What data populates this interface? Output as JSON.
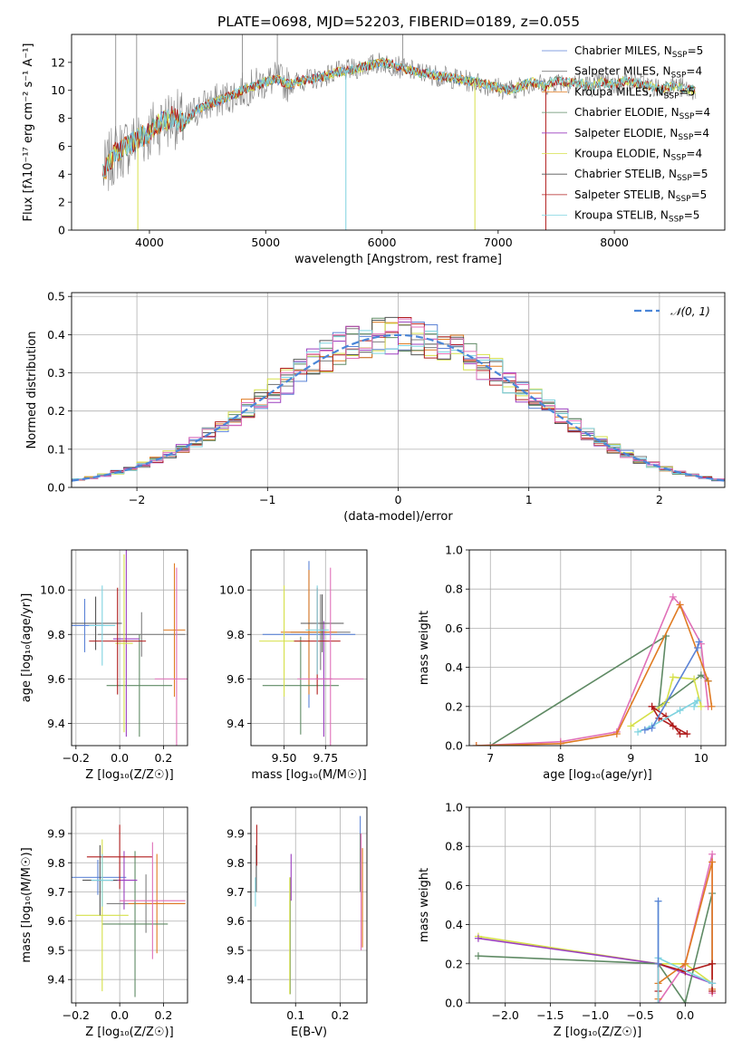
{
  "title": "PLATE=0698, MJD=52203, FIBERID=0189, z=0.055",
  "colors": {
    "Chabrier MILES": "#5b83d6",
    "Salpeter MILES": "#7f7f7f",
    "Kroupa MILES": "#e07b22",
    "Chabrier ELODIE": "#5f8a64",
    "Salpeter ELODIE": "#9b3fbf",
    "Kroupa ELODIE": "#d6e04a",
    "Chabrier STELIB": "#555555",
    "Salpeter STELIB": "#b01d1d",
    "Kroupa STELIB": "#7fd3e0",
    "pink": "#e070b8",
    "gauss": "#4a86d8"
  },
  "chart_data": [
    {
      "type": "line",
      "xlabel": "wavelength [Angstrom, rest frame]",
      "ylabel": "Flux [fλ10⁻¹⁷ erg cm⁻² s⁻¹ A⁻¹]",
      "xlim": [
        3330,
        8950
      ],
      "ylim": [
        0,
        14
      ],
      "xticks": [
        4000,
        5000,
        6000,
        7000,
        8000
      ],
      "yticks": [
        0,
        2,
        4,
        6,
        8,
        10,
        12
      ],
      "grid": false,
      "legend_position": "right",
      "legend": [
        {
          "name": "Chabrier MILES, N",
          "sub": "SSP",
          "tail": "=5"
        },
        {
          "name": "Salpeter MILES, N",
          "sub": "SSP",
          "tail": "=4"
        },
        {
          "name": "Kroupa MILES, N",
          "sub": "SSP",
          "tail": "=5"
        },
        {
          "name": "Chabrier ELODIE, N",
          "sub": "SSP",
          "tail": "=4"
        },
        {
          "name": "Salpeter ELODIE, N",
          "sub": "SSP",
          "tail": "=4"
        },
        {
          "name": "Kroupa ELODIE, N",
          "sub": "SSP",
          "tail": "=4"
        },
        {
          "name": "Chabrier STELIB, N",
          "sub": "SSP",
          "tail": "=5"
        },
        {
          "name": "Salpeter STELIB, N",
          "sub": "SSP",
          "tail": "=5"
        },
        {
          "name": "Kroupa STELIB, N",
          "sub": "SSP",
          "tail": "=5"
        }
      ],
      "continuum": [
        [
          3600,
          4.0
        ],
        [
          3700,
          5.5
        ],
        [
          3800,
          6.0
        ],
        [
          3900,
          6.5
        ],
        [
          4000,
          7.0
        ],
        [
          4100,
          7.7
        ],
        [
          4200,
          8.1
        ],
        [
          4300,
          7.6
        ],
        [
          4400,
          8.6
        ],
        [
          4500,
          9.0
        ],
        [
          4600,
          9.3
        ],
        [
          4700,
          9.6
        ],
        [
          4800,
          10.0
        ],
        [
          4900,
          10.3
        ],
        [
          5000,
          10.6
        ],
        [
          5100,
          10.8
        ],
        [
          5200,
          10.4
        ],
        [
          5300,
          10.7
        ],
        [
          5400,
          10.8
        ],
        [
          5500,
          11.0
        ],
        [
          5600,
          11.3
        ],
        [
          5700,
          11.4
        ],
        [
          5800,
          11.6
        ],
        [
          5900,
          11.8
        ],
        [
          6000,
          12.0
        ],
        [
          6100,
          11.8
        ],
        [
          6200,
          11.5
        ],
        [
          6300,
          11.3
        ],
        [
          6400,
          11.2
        ],
        [
          6500,
          11.0
        ],
        [
          6600,
          10.9
        ],
        [
          6700,
          10.7
        ],
        [
          6800,
          10.6
        ],
        [
          6900,
          10.4
        ],
        [
          7000,
          10.2
        ],
        [
          7100,
          10.0
        ],
        [
          7200,
          10.3
        ],
        [
          7300,
          10.6
        ],
        [
          7400,
          10.3
        ],
        [
          7500,
          10.7
        ],
        [
          7600,
          10.6
        ],
        [
          7700,
          10.5
        ],
        [
          7800,
          10.3
        ],
        [
          7900,
          10.6
        ],
        [
          8000,
          10.4
        ],
        [
          8100,
          10.7
        ],
        [
          8200,
          10.5
        ],
        [
          8300,
          10.3
        ],
        [
          8400,
          10.1
        ],
        [
          8500,
          10.4
        ],
        [
          8600,
          10.1
        ],
        [
          8700,
          10.0
        ]
      ]
    },
    {
      "type": "bar",
      "xlabel": "(data-model)/error",
      "ylabel": "Normed distribution",
      "xlim": [
        -2.5,
        2.5
      ],
      "ylim": [
        0,
        0.51
      ],
      "xticks": [
        -2,
        -1,
        0,
        1,
        2
      ],
      "yticks": [
        0.0,
        0.1,
        0.2,
        0.3,
        0.4,
        0.5
      ],
      "grid": true,
      "legend": "𝒩(0, 1)",
      "legend_position": "top-right",
      "bin_width": 0.1
    },
    {
      "type": "scatter",
      "xlabel": "Z [log₁₀(Z/Z☉)]",
      "ylabel": "age  [log₁₀(age/yr)]",
      "xlim": [
        -0.22,
        0.31
      ],
      "ylim": [
        9.3,
        10.18
      ],
      "xticks": [
        -0.2,
        0.0,
        0.2
      ],
      "yticks": [
        9.4,
        9.6,
        9.8,
        10.0
      ],
      "grid": true,
      "points": [
        {
          "s": "Chabrier MILES",
          "x": -0.16,
          "y": 9.84,
          "ex": 0.09,
          "ey": 0.12
        },
        {
          "s": "Salpeter MILES",
          "x": 0.1,
          "y": 9.8,
          "ex": 0.2,
          "ey": 0.1
        },
        {
          "s": "Kroupa MILES",
          "x": 0.25,
          "y": 9.82,
          "ex": 0.05,
          "ey": 0.3
        },
        {
          "s": "Chabrier ELODIE",
          "x": 0.09,
          "y": 9.57,
          "ex": 0.15,
          "ey": 0.23
        },
        {
          "s": "Salpeter ELODIE",
          "x": 0.03,
          "y": 9.78,
          "ex": 0.06,
          "ey": 0.44
        },
        {
          "s": "Kroupa ELODIE",
          "x": 0.02,
          "y": 9.76,
          "ex": 0.04,
          "ey": 0.4
        },
        {
          "s": "Chabrier STELIB",
          "x": -0.11,
          "y": 9.85,
          "ex": 0.12,
          "ey": 0.12
        },
        {
          "s": "Salpeter STELIB",
          "x": -0.01,
          "y": 9.77,
          "ex": 0.13,
          "ey": 0.24
        },
        {
          "s": "Kroupa STELIB",
          "x": -0.08,
          "y": 9.84,
          "ex": 0.06,
          "ey": 0.18
        },
        {
          "s": "pink",
          "x": 0.26,
          "y": 9.6,
          "ex": 0.1,
          "ey": 0.5
        }
      ]
    },
    {
      "type": "scatter",
      "xlabel": "mass [log₁₀(M/M☉)]",
      "ylabel": "",
      "xlim": [
        9.3,
        10.0
      ],
      "ylim": [
        9.3,
        10.18
      ],
      "xticks": [
        9.5,
        9.75
      ],
      "yticks": [
        9.4,
        9.6,
        9.8,
        10.0
      ],
      "grid": true,
      "points": [
        {
          "s": "Chabrier MILES",
          "x": 9.65,
          "y": 9.8,
          "ex": 0.28,
          "ey": 0.33
        },
        {
          "s": "Salpeter MILES",
          "x": 9.72,
          "y": 9.81,
          "ex": 0.18,
          "ey": 0.17
        },
        {
          "s": "Kroupa MILES",
          "x": 9.65,
          "y": 9.81,
          "ex": 0.17,
          "ey": 0.28
        },
        {
          "s": "Chabrier ELODIE",
          "x": 9.6,
          "y": 9.57,
          "ex": 0.23,
          "ey": 0.22
        },
        {
          "s": "Salpeter ELODIE",
          "x": 9.74,
          "y": 9.6,
          "ex": 0.05,
          "ey": 0.26
        },
        {
          "s": "Kroupa ELODIE",
          "x": 9.5,
          "y": 9.77,
          "ex": 0.15,
          "ey": 0.25
        },
        {
          "s": "Chabrier STELIB",
          "x": 9.73,
          "y": 9.85,
          "ex": 0.13,
          "ey": 0.13
        },
        {
          "s": "Salpeter STELIB",
          "x": 9.7,
          "y": 9.77,
          "ex": 0.14,
          "ey": 0.24
        },
        {
          "s": "Kroupa STELIB",
          "x": 9.7,
          "y": 9.82,
          "ex": 0.07,
          "ey": 0.2
        },
        {
          "s": "pink",
          "x": 9.78,
          "y": 9.6,
          "ex": 0.2,
          "ey": 0.5
        }
      ]
    },
    {
      "type": "line",
      "xlabel": "age  [log₁₀(age/yr)]",
      "ylabel": "mass weight",
      "xlim": [
        6.7,
        10.35
      ],
      "ylim": [
        0,
        1.0
      ],
      "xticks": [
        7,
        8,
        9,
        10
      ],
      "yticks": [
        0.0,
        0.2,
        0.4,
        0.6,
        0.8,
        1.0
      ],
      "grid": true,
      "series": [
        {
          "s": "Chabrier ELODIE",
          "x": [
            7.0,
            9.5,
            9.4,
            10.0,
            10.1
          ],
          "y": [
            0.0,
            0.56,
            0.2,
            0.36,
            0.33
          ]
        },
        {
          "s": "pink",
          "x": [
            6.8,
            8.0,
            8.8,
            9.6,
            9.7,
            10.0,
            10.1
          ],
          "y": [
            0.0,
            0.02,
            0.07,
            0.76,
            0.72,
            0.52,
            0.2
          ]
        },
        {
          "s": "Kroupa MILES",
          "x": [
            6.8,
            8.0,
            8.8,
            9.7,
            10.1,
            10.15
          ],
          "y": [
            0.0,
            0.01,
            0.06,
            0.72,
            0.33,
            0.2
          ]
        },
        {
          "s": "Kroupa ELODIE",
          "x": [
            9.0,
            9.5,
            9.6,
            9.9,
            10.0
          ],
          "y": [
            0.1,
            0.22,
            0.35,
            0.34,
            0.2
          ]
        },
        {
          "s": "Salpeter STELIB",
          "x": [
            9.3,
            9.4,
            9.6,
            9.8,
            9.7,
            9.5,
            9.3
          ],
          "y": [
            0.2,
            0.14,
            0.1,
            0.06,
            0.06,
            0.15,
            0.2
          ]
        },
        {
          "s": "Kroupa STELIB",
          "x": [
            9.1,
            9.3,
            9.7,
            9.95,
            9.9
          ],
          "y": [
            0.07,
            0.1,
            0.18,
            0.23,
            0.2
          ]
        },
        {
          "s": "Chabrier MILES",
          "x": [
            9.2,
            9.3,
            9.95,
            9.97
          ],
          "y": [
            0.08,
            0.09,
            0.5,
            0.53
          ]
        }
      ]
    },
    {
      "type": "scatter",
      "xlabel": "Z [log₁₀(Z/Z☉)]",
      "ylabel": "mass [log₁₀(M/M☉)]",
      "xlim": [
        -0.22,
        0.31
      ],
      "ylim": [
        9.32,
        9.99
      ],
      "xticks": [
        -0.2,
        0.0,
        0.2
      ],
      "yticks": [
        9.4,
        9.5,
        9.6,
        9.7,
        9.8,
        9.9
      ],
      "grid": true,
      "points": [
        {
          "s": "Chabrier MILES",
          "x": -0.1,
          "y": 9.75,
          "ex": 0.13,
          "ey": 0.06
        },
        {
          "s": "Salpeter MILES",
          "x": 0.12,
          "y": 9.66,
          "ex": 0.18,
          "ey": 0.1
        },
        {
          "s": "Kroupa MILES",
          "x": 0.17,
          "y": 9.66,
          "ex": 0.13,
          "ey": 0.17
        },
        {
          "s": "Chabrier ELODIE",
          "x": 0.07,
          "y": 9.59,
          "ex": 0.15,
          "ey": 0.25
        },
        {
          "s": "Salpeter ELODIE",
          "x": 0.02,
          "y": 9.74,
          "ex": 0.06,
          "ey": 0.1
        },
        {
          "s": "Kroupa ELODIE",
          "x": -0.08,
          "y": 9.62,
          "ex": 0.12,
          "ey": 0.26
        },
        {
          "s": "Chabrier STELIB",
          "x": -0.09,
          "y": 9.74,
          "ex": 0.08,
          "ey": 0.12
        },
        {
          "s": "Salpeter STELIB",
          "x": 0.0,
          "y": 9.82,
          "ex": 0.15,
          "ey": 0.11
        },
        {
          "s": "Kroupa STELIB",
          "x": -0.08,
          "y": 9.74,
          "ex": 0.05,
          "ey": 0.09
        },
        {
          "s": "pink",
          "x": 0.15,
          "y": 9.67,
          "ex": 0.15,
          "ey": 0.2
        }
      ]
    },
    {
      "type": "scatter",
      "xlabel": "E(B-V)",
      "ylabel": "",
      "xlim": [
        0.0,
        0.26
      ],
      "ylim": [
        9.32,
        9.99
      ],
      "xticks": [
        0.1,
        0.2
      ],
      "yticks": [
        9.4,
        9.5,
        9.6,
        9.7,
        9.8,
        9.9
      ],
      "grid": true,
      "points": [
        {
          "s": "Chabrier MILES",
          "x": 0.245,
          "y": 9.88,
          "ex": 0,
          "ey": 0.08
        },
        {
          "s": "Salpeter MILES",
          "x": 0.245,
          "y": 9.8,
          "ex": 0,
          "ey": 0.1
        },
        {
          "s": "Kroupa MILES",
          "x": 0.25,
          "y": 9.68,
          "ex": 0,
          "ey": 0.17
        },
        {
          "s": "Chabrier ELODIE",
          "x": 0.088,
          "y": 9.55,
          "ex": 0,
          "ey": 0.2
        },
        {
          "s": "Salpeter ELODIE",
          "x": 0.09,
          "y": 9.75,
          "ex": 0,
          "ey": 0.08
        },
        {
          "s": "Kroupa ELODIE",
          "x": 0.087,
          "y": 9.55,
          "ex": 0,
          "ey": 0.2
        },
        {
          "s": "Chabrier STELIB",
          "x": 0.012,
          "y": 9.78,
          "ex": 0,
          "ey": 0.08
        },
        {
          "s": "Salpeter STELIB",
          "x": 0.013,
          "y": 9.86,
          "ex": 0,
          "ey": 0.07
        },
        {
          "s": "Kroupa STELIB",
          "x": 0.01,
          "y": 9.7,
          "ex": 0,
          "ey": 0.05
        },
        {
          "s": "pink",
          "x": 0.247,
          "y": 9.7,
          "ex": 0,
          "ey": 0.2
        }
      ]
    },
    {
      "type": "line",
      "xlabel": "Z [log₁₀(Z/Z☉)]",
      "ylabel": "mass weight",
      "xlim": [
        -2.4,
        0.45
      ],
      "ylim": [
        0,
        1.0
      ],
      "xticks": [
        -2.0,
        -1.5,
        -1.0,
        -0.5,
        0.0
      ],
      "yticks": [
        0.0,
        0.2,
        0.4,
        0.6,
        0.8,
        1.0
      ],
      "grid": true,
      "series": [
        {
          "s": "Kroupa ELODIE",
          "x": [
            -2.3,
            -0.3,
            0.0,
            0.3
          ],
          "y": [
            0.34,
            0.2,
            0.2,
            0.1
          ]
        },
        {
          "s": "Salpeter ELODIE",
          "x": [
            -2.3,
            -0.3,
            0.3
          ],
          "y": [
            0.33,
            0.2,
            0.1
          ]
        },
        {
          "s": "Chabrier ELODIE",
          "x": [
            -2.3,
            -0.3,
            0.0,
            0.3,
            0.3
          ],
          "y": [
            0.24,
            0.2,
            0.0,
            0.56,
            0.2
          ]
        },
        {
          "s": "pink",
          "x": [
            -0.3,
            -0.3,
            0.0,
            0.3,
            0.3
          ],
          "y": [
            0.2,
            0.0,
            0.2,
            0.76,
            0.05
          ]
        },
        {
          "s": "Kroupa MILES",
          "x": [
            -0.3,
            -0.3,
            0.0,
            0.3,
            0.3
          ],
          "y": [
            0.02,
            0.1,
            0.2,
            0.72,
            0.07
          ]
        },
        {
          "s": "Salpeter STELIB",
          "x": [
            -0.3,
            -0.3,
            0.0,
            0.3,
            0.3
          ],
          "y": [
            0.06,
            0.2,
            0.16,
            0.2,
            0.06
          ]
        },
        {
          "s": "Kroupa STELIB",
          "x": [
            -0.3,
            -0.3,
            -0.3,
            0.3
          ],
          "y": [
            0.0,
            0.52,
            0.23,
            0.1
          ]
        },
        {
          "s": "Chabrier MILES",
          "x": [
            -0.3,
            -0.3
          ],
          "y": [
            0.52,
            0.2
          ]
        }
      ]
    }
  ]
}
